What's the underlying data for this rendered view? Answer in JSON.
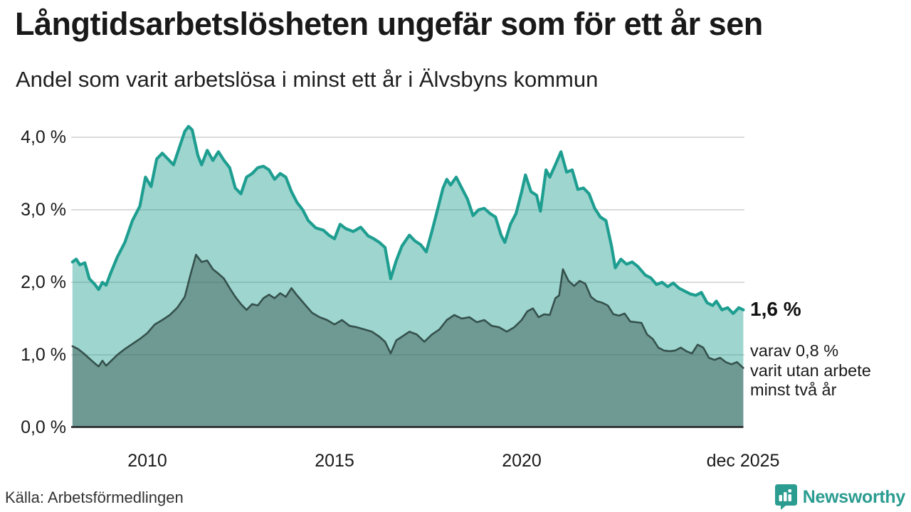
{
  "header": {
    "title": "Långtidsarbetslösheten ungefär som för ett år sen",
    "subtitle": "Andel som varit arbetslösa i minst ett år i Älvsbyns kommun"
  },
  "annotations": {
    "primary_value": "1,6 %",
    "secondary_note": "varav 0,8 %\nvarit utan arbete\nminst två år"
  },
  "footer": {
    "source": "Källa: Arbetsförmedlingen",
    "brand": "Newsworthy"
  },
  "colors": {
    "line_1yr": "#1e9e90",
    "fill_1yr": "rgba(30,158,144,0.43)",
    "line_2yr": "#35514c",
    "fill_2yr": "rgba(53,81,76,0.45)",
    "gridline": "#cfcfcf",
    "baseline": "#1f1f1f",
    "brand_teal": "#2a9c90",
    "text": "#1a1a1a"
  },
  "chart_data": {
    "type": "area",
    "title": "Långtidsarbetslösheten ungefär som för ett år sen",
    "subtitle": "Andel som varit arbetslösa i minst ett år i Älvsbyns kommun",
    "unit": "%",
    "xlim": [
      2008.0,
      2025.95
    ],
    "ylim": [
      0,
      4.4
    ],
    "grid": "horizontal",
    "legend": "none",
    "y_ticks": [
      {
        "label": "4,0 %",
        "value": 4.0
      },
      {
        "label": "3,0 %",
        "value": 3.0
      },
      {
        "label": "2,0 %",
        "value": 2.0
      },
      {
        "label": "1,0 %",
        "value": 1.0
      },
      {
        "label": "0,0 %",
        "value": 0.0
      }
    ],
    "x_ticks": [
      {
        "label": "2010",
        "year": 2010
      },
      {
        "label": "2015",
        "year": 2015
      },
      {
        "label": "2020",
        "year": 2020
      },
      {
        "label": "dec 2025",
        "year": 2025.92
      }
    ],
    "end_labels": [
      {
        "series": "minst ett år",
        "label": "1,6 %",
        "value": 1.6
      },
      {
        "series": "minst två år",
        "label": "0,8 %",
        "value": 0.8
      }
    ],
    "series": [
      {
        "name": "Andel arbetslösa minst ett år",
        "points": [
          [
            2008.0,
            2.28
          ],
          [
            2008.1,
            2.32
          ],
          [
            2008.2,
            2.24
          ],
          [
            2008.33,
            2.27
          ],
          [
            2008.45,
            2.05
          ],
          [
            2008.6,
            1.97
          ],
          [
            2008.7,
            1.9
          ],
          [
            2008.8,
            2.0
          ],
          [
            2008.9,
            1.96
          ],
          [
            2009.0,
            2.1
          ],
          [
            2009.2,
            2.35
          ],
          [
            2009.4,
            2.55
          ],
          [
            2009.6,
            2.85
          ],
          [
            2009.8,
            3.05
          ],
          [
            2009.95,
            3.45
          ],
          [
            2010.1,
            3.32
          ],
          [
            2010.25,
            3.7
          ],
          [
            2010.4,
            3.78
          ],
          [
            2010.55,
            3.7
          ],
          [
            2010.7,
            3.62
          ],
          [
            2010.85,
            3.85
          ],
          [
            2011.0,
            4.08
          ],
          [
            2011.1,
            4.15
          ],
          [
            2011.2,
            4.1
          ],
          [
            2011.35,
            3.75
          ],
          [
            2011.45,
            3.62
          ],
          [
            2011.6,
            3.82
          ],
          [
            2011.75,
            3.68
          ],
          [
            2011.9,
            3.8
          ],
          [
            2012.05,
            3.68
          ],
          [
            2012.2,
            3.58
          ],
          [
            2012.35,
            3.3
          ],
          [
            2012.5,
            3.22
          ],
          [
            2012.65,
            3.45
          ],
          [
            2012.8,
            3.5
          ],
          [
            2012.95,
            3.58
          ],
          [
            2013.1,
            3.6
          ],
          [
            2013.25,
            3.55
          ],
          [
            2013.4,
            3.42
          ],
          [
            2013.55,
            3.5
          ],
          [
            2013.7,
            3.45
          ],
          [
            2013.85,
            3.25
          ],
          [
            2014.0,
            3.1
          ],
          [
            2014.15,
            3.0
          ],
          [
            2014.3,
            2.85
          ],
          [
            2014.5,
            2.75
          ],
          [
            2014.7,
            2.72
          ],
          [
            2014.85,
            2.65
          ],
          [
            2015.0,
            2.6
          ],
          [
            2015.15,
            2.8
          ],
          [
            2015.3,
            2.74
          ],
          [
            2015.5,
            2.7
          ],
          [
            2015.7,
            2.76
          ],
          [
            2015.9,
            2.64
          ],
          [
            2016.05,
            2.6
          ],
          [
            2016.2,
            2.55
          ],
          [
            2016.35,
            2.48
          ],
          [
            2016.5,
            2.05
          ],
          [
            2016.65,
            2.3
          ],
          [
            2016.8,
            2.5
          ],
          [
            2017.0,
            2.65
          ],
          [
            2017.15,
            2.57
          ],
          [
            2017.3,
            2.52
          ],
          [
            2017.45,
            2.42
          ],
          [
            2017.6,
            2.7
          ],
          [
            2017.75,
            3.0
          ],
          [
            2017.9,
            3.3
          ],
          [
            2018.0,
            3.42
          ],
          [
            2018.1,
            3.34
          ],
          [
            2018.25,
            3.45
          ],
          [
            2018.4,
            3.3
          ],
          [
            2018.55,
            3.15
          ],
          [
            2018.7,
            2.92
          ],
          [
            2018.85,
            3.0
          ],
          [
            2019.0,
            3.02
          ],
          [
            2019.15,
            2.95
          ],
          [
            2019.3,
            2.9
          ],
          [
            2019.45,
            2.65
          ],
          [
            2019.55,
            2.55
          ],
          [
            2019.7,
            2.8
          ],
          [
            2019.85,
            2.95
          ],
          [
            2020.0,
            3.25
          ],
          [
            2020.1,
            3.48
          ],
          [
            2020.25,
            3.25
          ],
          [
            2020.4,
            3.2
          ],
          [
            2020.5,
            2.98
          ],
          [
            2020.65,
            3.55
          ],
          [
            2020.75,
            3.45
          ],
          [
            2020.9,
            3.62
          ],
          [
            2021.05,
            3.8
          ],
          [
            2021.2,
            3.52
          ],
          [
            2021.35,
            3.55
          ],
          [
            2021.5,
            3.28
          ],
          [
            2021.65,
            3.3
          ],
          [
            2021.8,
            3.22
          ],
          [
            2021.95,
            3.02
          ],
          [
            2022.1,
            2.9
          ],
          [
            2022.25,
            2.85
          ],
          [
            2022.4,
            2.5
          ],
          [
            2022.5,
            2.2
          ],
          [
            2022.65,
            2.32
          ],
          [
            2022.8,
            2.25
          ],
          [
            2022.95,
            2.28
          ],
          [
            2023.1,
            2.22
          ],
          [
            2023.3,
            2.1
          ],
          [
            2023.45,
            2.06
          ],
          [
            2023.6,
            1.97
          ],
          [
            2023.75,
            2.0
          ],
          [
            2023.9,
            1.94
          ],
          [
            2024.05,
            1.99
          ],
          [
            2024.2,
            1.92
          ],
          [
            2024.35,
            1.88
          ],
          [
            2024.5,
            1.84
          ],
          [
            2024.65,
            1.82
          ],
          [
            2024.8,
            1.86
          ],
          [
            2024.95,
            1.72
          ],
          [
            2025.1,
            1.68
          ],
          [
            2025.2,
            1.74
          ],
          [
            2025.35,
            1.62
          ],
          [
            2025.5,
            1.65
          ],
          [
            2025.65,
            1.57
          ],
          [
            2025.8,
            1.65
          ],
          [
            2025.92,
            1.62
          ]
        ]
      },
      {
        "name": "Andel arbetslösa minst två år",
        "points": [
          [
            2008.0,
            1.12
          ],
          [
            2008.15,
            1.08
          ],
          [
            2008.3,
            1.02
          ],
          [
            2008.45,
            0.95
          ],
          [
            2008.6,
            0.88
          ],
          [
            2008.7,
            0.84
          ],
          [
            2008.8,
            0.92
          ],
          [
            2008.9,
            0.85
          ],
          [
            2009.0,
            0.9
          ],
          [
            2009.2,
            1.0
          ],
          [
            2009.4,
            1.08
          ],
          [
            2009.6,
            1.15
          ],
          [
            2009.8,
            1.22
          ],
          [
            2010.0,
            1.3
          ],
          [
            2010.2,
            1.42
          ],
          [
            2010.4,
            1.48
          ],
          [
            2010.6,
            1.55
          ],
          [
            2010.8,
            1.65
          ],
          [
            2011.0,
            1.8
          ],
          [
            2011.15,
            2.1
          ],
          [
            2011.3,
            2.38
          ],
          [
            2011.45,
            2.28
          ],
          [
            2011.6,
            2.3
          ],
          [
            2011.75,
            2.18
          ],
          [
            2011.9,
            2.12
          ],
          [
            2012.05,
            2.05
          ],
          [
            2012.2,
            1.92
          ],
          [
            2012.35,
            1.8
          ],
          [
            2012.5,
            1.7
          ],
          [
            2012.65,
            1.62
          ],
          [
            2012.8,
            1.7
          ],
          [
            2012.95,
            1.68
          ],
          [
            2013.1,
            1.78
          ],
          [
            2013.25,
            1.83
          ],
          [
            2013.4,
            1.78
          ],
          [
            2013.55,
            1.85
          ],
          [
            2013.7,
            1.8
          ],
          [
            2013.85,
            1.92
          ],
          [
            2014.0,
            1.82
          ],
          [
            2014.2,
            1.7
          ],
          [
            2014.4,
            1.58
          ],
          [
            2014.6,
            1.52
          ],
          [
            2014.8,
            1.48
          ],
          [
            2015.0,
            1.42
          ],
          [
            2015.2,
            1.48
          ],
          [
            2015.4,
            1.4
          ],
          [
            2015.6,
            1.38
          ],
          [
            2015.8,
            1.35
          ],
          [
            2016.0,
            1.32
          ],
          [
            2016.2,
            1.25
          ],
          [
            2016.35,
            1.18
          ],
          [
            2016.5,
            1.02
          ],
          [
            2016.65,
            1.2
          ],
          [
            2016.8,
            1.25
          ],
          [
            2017.0,
            1.32
          ],
          [
            2017.2,
            1.28
          ],
          [
            2017.4,
            1.18
          ],
          [
            2017.6,
            1.28
          ],
          [
            2017.8,
            1.35
          ],
          [
            2018.0,
            1.48
          ],
          [
            2018.2,
            1.55
          ],
          [
            2018.4,
            1.5
          ],
          [
            2018.6,
            1.52
          ],
          [
            2018.8,
            1.45
          ],
          [
            2019.0,
            1.48
          ],
          [
            2019.2,
            1.4
          ],
          [
            2019.4,
            1.38
          ],
          [
            2019.6,
            1.32
          ],
          [
            2019.8,
            1.38
          ],
          [
            2020.0,
            1.48
          ],
          [
            2020.15,
            1.6
          ],
          [
            2020.3,
            1.64
          ],
          [
            2020.45,
            1.52
          ],
          [
            2020.6,
            1.56
          ],
          [
            2020.75,
            1.55
          ],
          [
            2020.9,
            1.78
          ],
          [
            2021.0,
            1.82
          ],
          [
            2021.1,
            2.18
          ],
          [
            2021.25,
            2.02
          ],
          [
            2021.4,
            1.95
          ],
          [
            2021.55,
            2.02
          ],
          [
            2021.7,
            1.98
          ],
          [
            2021.85,
            1.8
          ],
          [
            2022.0,
            1.74
          ],
          [
            2022.15,
            1.72
          ],
          [
            2022.3,
            1.68
          ],
          [
            2022.45,
            1.56
          ],
          [
            2022.6,
            1.54
          ],
          [
            2022.75,
            1.57
          ],
          [
            2022.9,
            1.46
          ],
          [
            2023.05,
            1.45
          ],
          [
            2023.2,
            1.44
          ],
          [
            2023.35,
            1.28
          ],
          [
            2023.5,
            1.22
          ],
          [
            2023.65,
            1.1
          ],
          [
            2023.8,
            1.06
          ],
          [
            2023.95,
            1.05
          ],
          [
            2024.1,
            1.06
          ],
          [
            2024.25,
            1.1
          ],
          [
            2024.4,
            1.05
          ],
          [
            2024.55,
            1.02
          ],
          [
            2024.7,
            1.14
          ],
          [
            2024.85,
            1.1
          ],
          [
            2025.0,
            0.96
          ],
          [
            2025.15,
            0.93
          ],
          [
            2025.3,
            0.96
          ],
          [
            2025.45,
            0.9
          ],
          [
            2025.6,
            0.87
          ],
          [
            2025.75,
            0.9
          ],
          [
            2025.92,
            0.82
          ]
        ]
      }
    ]
  }
}
